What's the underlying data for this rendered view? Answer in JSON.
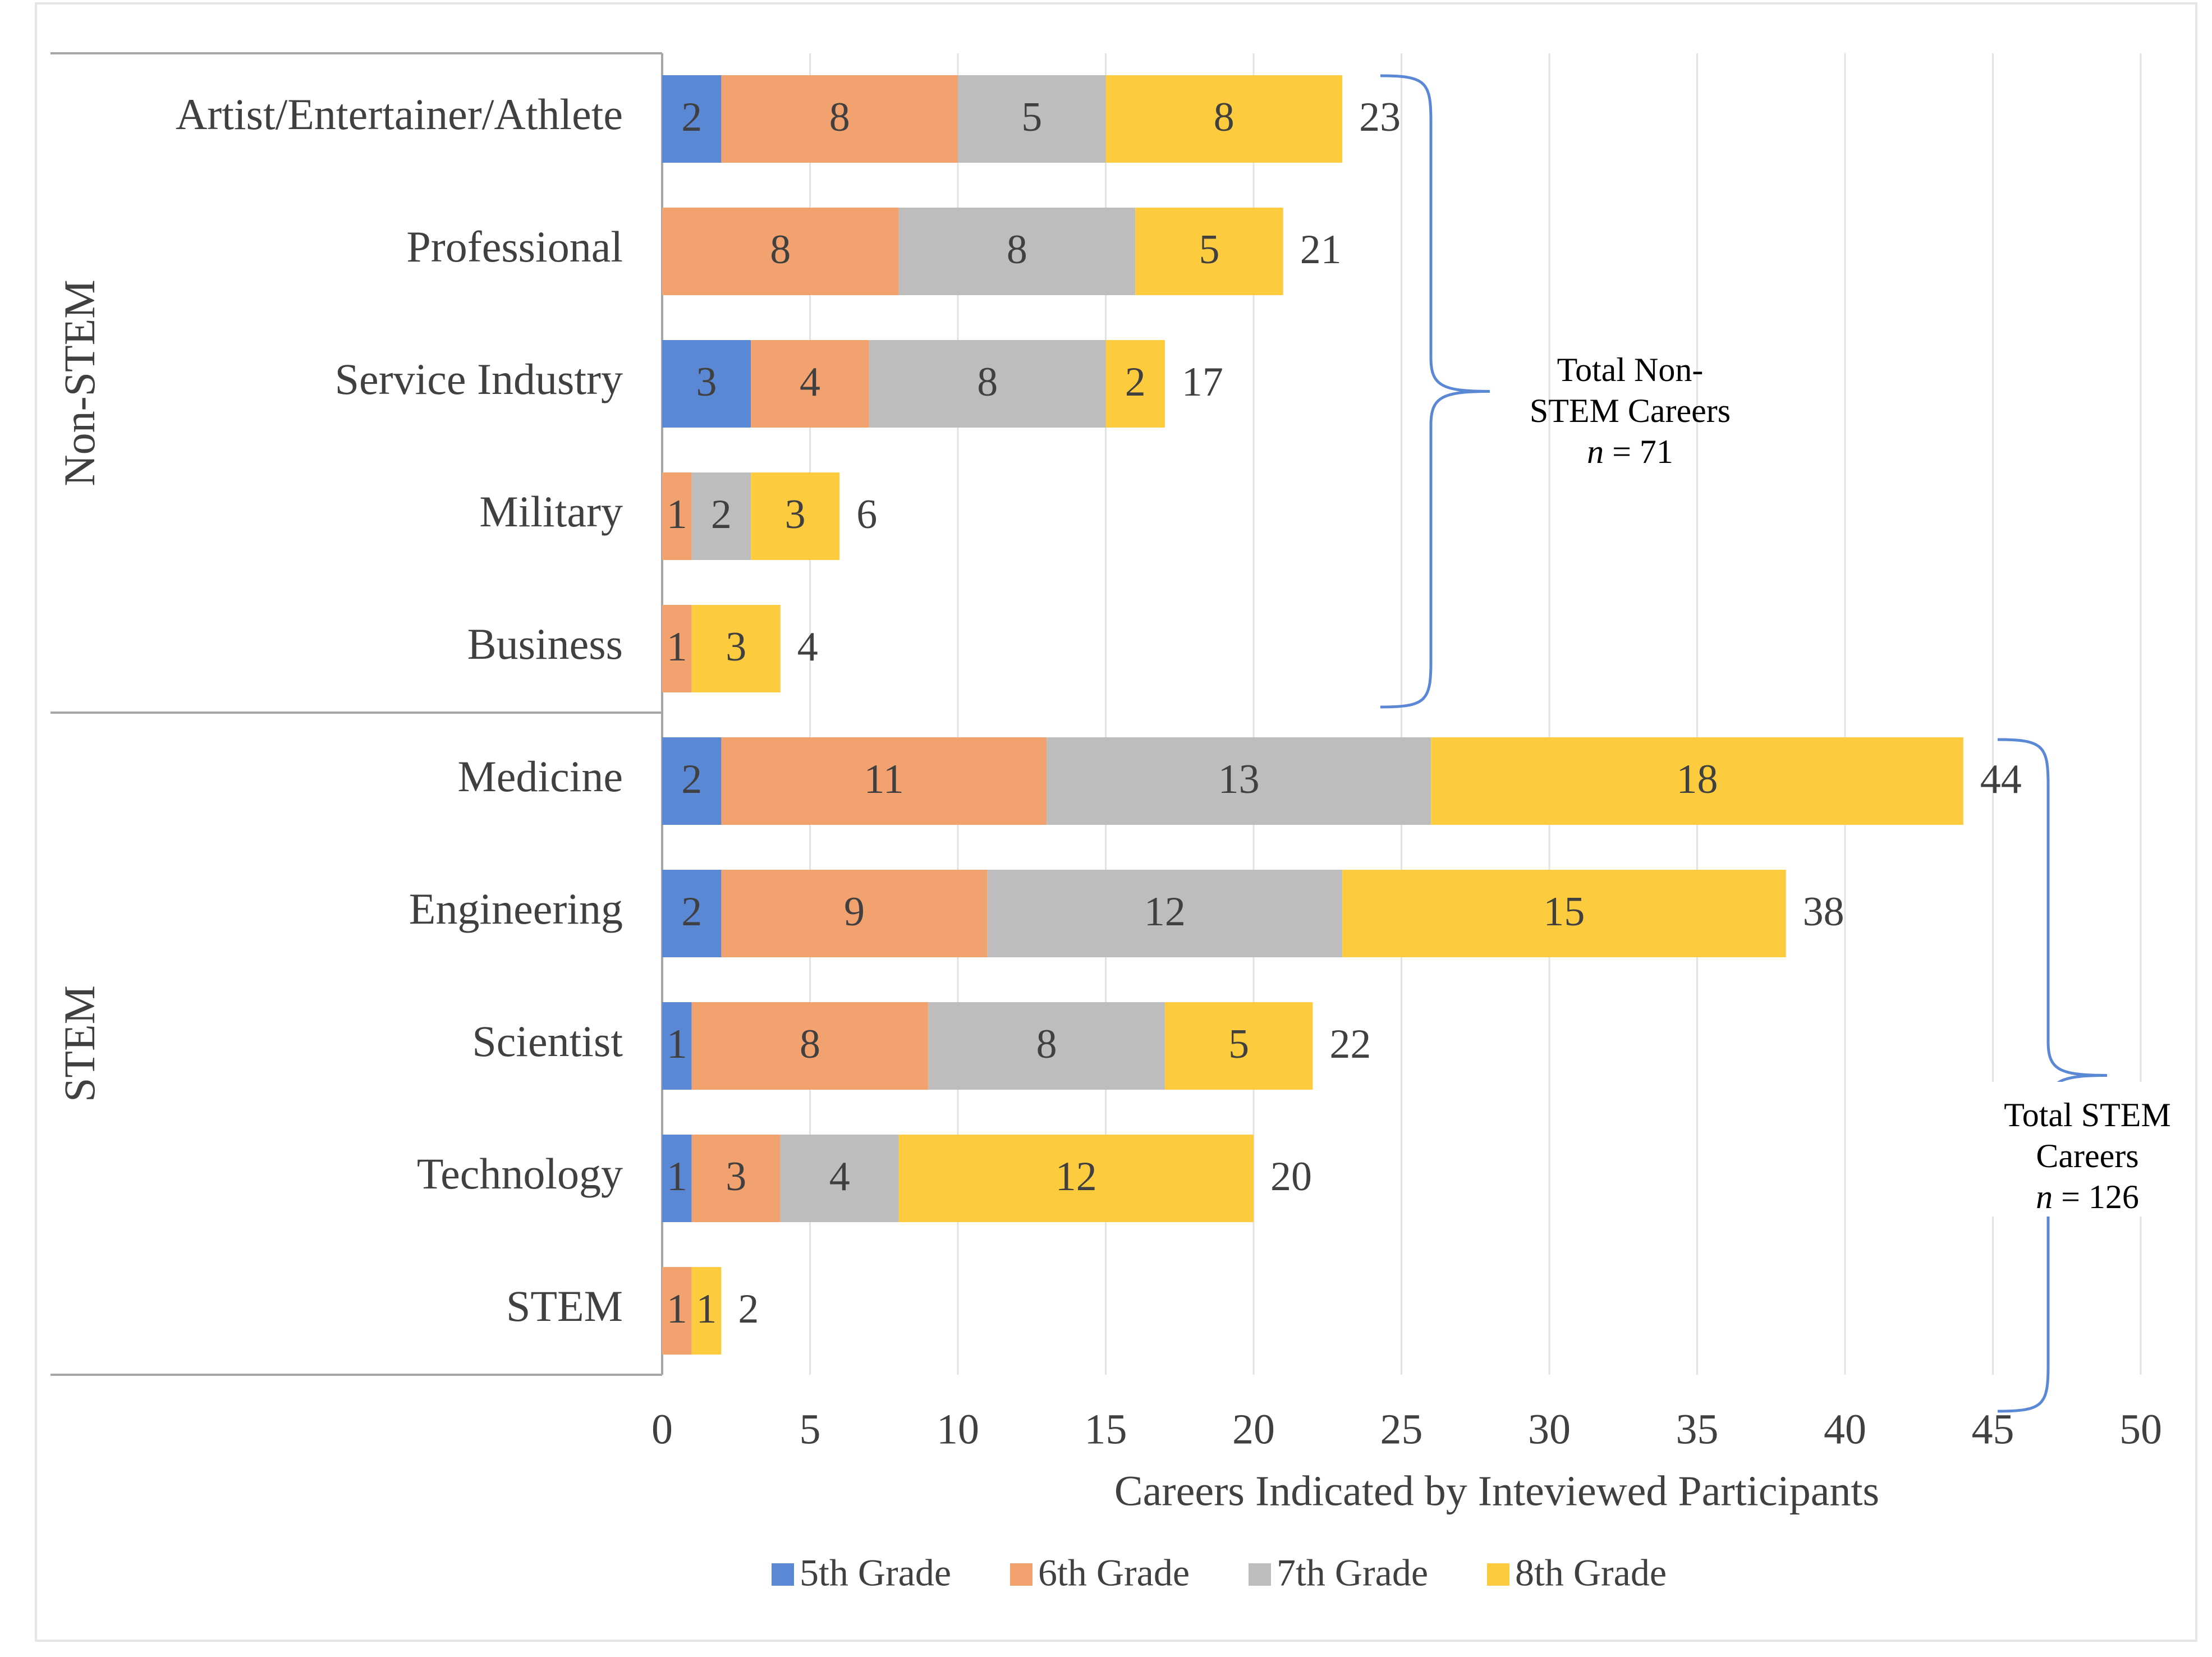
{
  "chart_data": {
    "type": "bar",
    "orientation": "horizontal",
    "stacked": true,
    "categories": [
      "Artist/Entertainer/Athlete",
      "Professional",
      "Service Industry",
      "Military",
      "Business",
      "Medicine",
      "Engineering",
      "Scientist",
      "Technology",
      "STEM"
    ],
    "groups": [
      {
        "label": "Non-STEM",
        "categories": [
          "Artist/Entertainer/Athlete",
          "Professional",
          "Service Industry",
          "Military",
          "Business"
        ]
      },
      {
        "label": "STEM",
        "categories": [
          "Medicine",
          "Engineering",
          "Scientist",
          "Technology",
          "STEM"
        ]
      }
    ],
    "series": [
      {
        "name": "5th Grade",
        "color": "#5b88d4",
        "values": [
          2,
          0,
          3,
          0,
          0,
          2,
          2,
          1,
          1,
          0
        ]
      },
      {
        "name": "6th Grade",
        "color": "#f2a26e",
        "values": [
          8,
          8,
          4,
          1,
          1,
          11,
          9,
          8,
          3,
          1
        ]
      },
      {
        "name": "7th Grade",
        "color": "#bdbdbd",
        "values": [
          5,
          8,
          8,
          2,
          0,
          13,
          12,
          8,
          4,
          0
        ]
      },
      {
        "name": "8th Grade",
        "color": "#fdcc3e",
        "values": [
          8,
          5,
          2,
          3,
          3,
          18,
          15,
          5,
          12,
          1
        ]
      }
    ],
    "totals": [
      23,
      21,
      17,
      6,
      4,
      44,
      38,
      22,
      20,
      2
    ],
    "xlabel": "Careers Indicated by Inteviewed Participants",
    "xlim": [
      0,
      50
    ],
    "xticks": [
      0,
      5,
      10,
      15,
      20,
      25,
      30,
      35,
      40,
      45,
      50
    ],
    "grid": true,
    "legend_position": "bottom",
    "annotations": [
      {
        "group": "Non-STEM",
        "lines": [
          "Total Non-",
          "STEM Careers"
        ],
        "n_label": "n",
        "n_value": "= 71"
      },
      {
        "group": "STEM",
        "lines": [
          "Total STEM",
          "Careers"
        ],
        "n_label": "n",
        "n_value": "= 126"
      }
    ]
  }
}
